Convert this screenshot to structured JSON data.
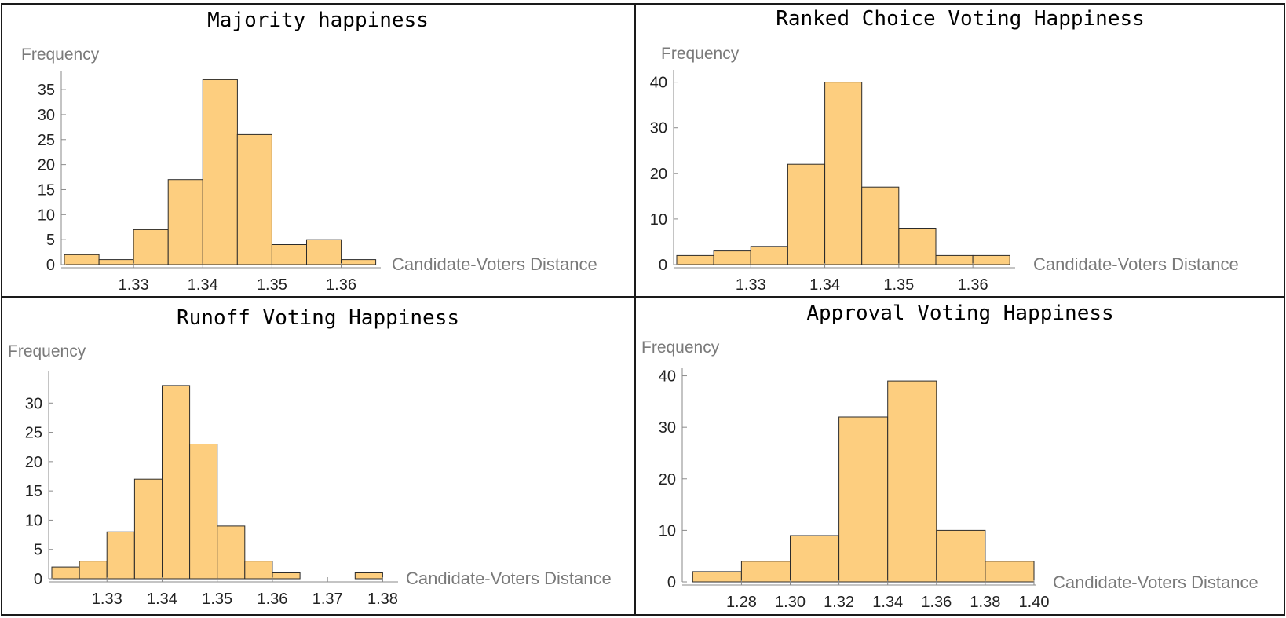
{
  "chart_data": [
    {
      "type": "bar",
      "title": "Majority happiness",
      "xlabel": "Candidate-Voters Distance",
      "ylabel": "Frequency",
      "bin_edges": [
        1.32,
        1.325,
        1.33,
        1.335,
        1.34,
        1.345,
        1.35,
        1.355,
        1.36,
        1.365
      ],
      "values": [
        2,
        1,
        7,
        17,
        37,
        26,
        4,
        5,
        1
      ],
      "xlim": [
        1.32,
        1.3655
      ],
      "ylim": [
        0,
        38
      ],
      "xticks": [
        1.33,
        1.34,
        1.35,
        1.36
      ],
      "xtick_labels": [
        "1.33",
        "1.34",
        "1.35",
        "1.36"
      ],
      "yticks": [
        0,
        5,
        10,
        15,
        20,
        25,
        30,
        35
      ],
      "ytick_labels": [
        "0",
        "5",
        "10",
        "15",
        "20",
        "25",
        "30",
        "35"
      ]
    },
    {
      "type": "bar",
      "title": "Ranked Choice Voting Happiness",
      "xlabel": "Candidate-Voters Distance",
      "ylabel": "Frequency",
      "bin_edges": [
        1.32,
        1.325,
        1.33,
        1.335,
        1.34,
        1.345,
        1.35,
        1.355,
        1.36,
        1.365
      ],
      "values": [
        2,
        3,
        4,
        22,
        40,
        17,
        8,
        2,
        2
      ],
      "xlim": [
        1.32,
        1.3655
      ],
      "ylim": [
        0,
        42
      ],
      "xticks": [
        1.33,
        1.34,
        1.35,
        1.36
      ],
      "xtick_labels": [
        "1.33",
        "1.34",
        "1.35",
        "1.36"
      ],
      "yticks": [
        0,
        10,
        20,
        30,
        40
      ],
      "ytick_labels": [
        "0",
        "10",
        "20",
        "30",
        "40"
      ]
    },
    {
      "type": "bar",
      "title": "Runoff Voting Happiness",
      "xlabel": "Candidate-Voters Distance",
      "ylabel": "Frequency",
      "bin_edges": [
        1.32,
        1.325,
        1.33,
        1.335,
        1.34,
        1.345,
        1.35,
        1.355,
        1.36,
        1.365,
        1.37,
        1.375,
        1.38
      ],
      "values": [
        2,
        3,
        8,
        17,
        33,
        23,
        9,
        3,
        1,
        0,
        0,
        1
      ],
      "xlim": [
        1.32,
        1.3825
      ],
      "ylim": [
        0,
        35
      ],
      "xticks": [
        1.33,
        1.34,
        1.35,
        1.36,
        1.37,
        1.38
      ],
      "xtick_labels": [
        "1.33",
        "1.34",
        "1.35",
        "1.36",
        "1.37",
        "1.38"
      ],
      "yticks": [
        0,
        5,
        10,
        15,
        20,
        25,
        30
      ],
      "ytick_labels": [
        "0",
        "5",
        "10",
        "15",
        "20",
        "25",
        "30"
      ]
    },
    {
      "type": "bar",
      "title": "Approval Voting Happiness",
      "xlabel": "Candidate-Voters Distance",
      "ylabel": "Frequency",
      "bin_edges": [
        1.26,
        1.28,
        1.3,
        1.32,
        1.34,
        1.36,
        1.38,
        1.4
      ],
      "values": [
        2,
        4,
        9,
        32,
        39,
        10,
        4
      ],
      "xlim": [
        1.257,
        1.4
      ],
      "ylim": [
        0,
        41
      ],
      "xticks": [
        1.28,
        1.3,
        1.32,
        1.34,
        1.36,
        1.38,
        1.4
      ],
      "xtick_labels": [
        "1.28",
        "1.30",
        "1.32",
        "1.34",
        "1.36",
        "1.38",
        "1.40"
      ],
      "yticks": [
        0,
        10,
        20,
        30,
        40
      ],
      "ytick_labels": [
        "0",
        "10",
        "20",
        "30",
        "40"
      ]
    }
  ],
  "colors": {
    "bar_fill": "#fdce7f",
    "bar_stroke": "#2b2b2b",
    "frame": "#1a1a1a",
    "label_gray": "#7a7a7a"
  }
}
